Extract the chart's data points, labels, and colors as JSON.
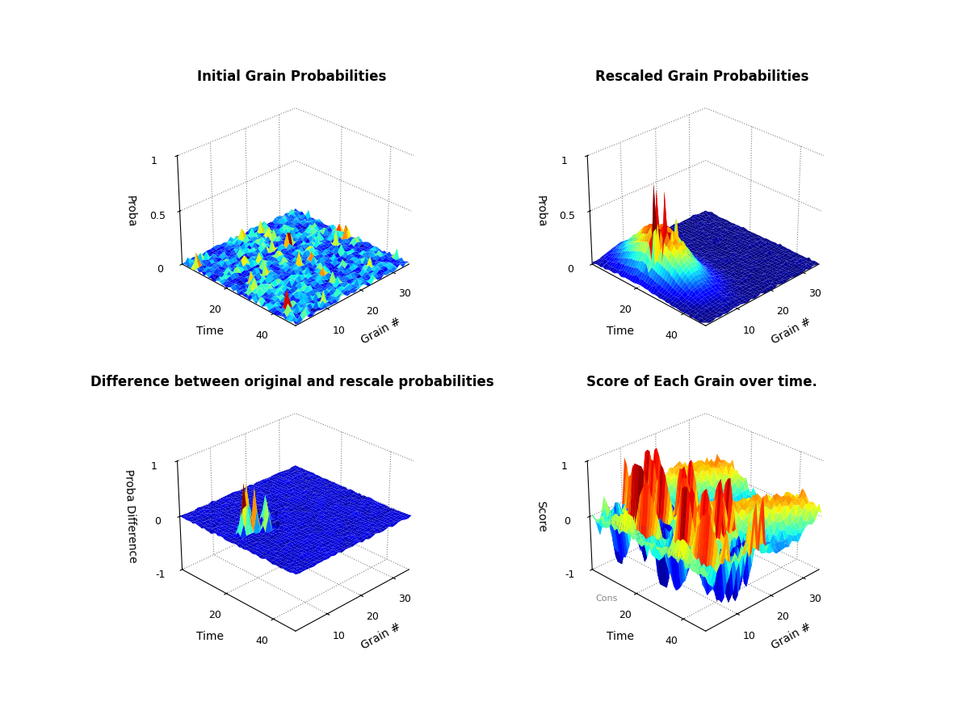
{
  "title1": "Initial Grain Probabilities",
  "title2": "Rescaled Grain Probabilities",
  "title3": "Difference between original and rescale probabilities",
  "title4": "Score of Each Grain over time.",
  "ylabel1": "Proba",
  "ylabel2": "Proba",
  "ylabel3": "Proba Difference",
  "ylabel4": "Score",
  "xlabel_time": "Time",
  "xlabel_grain": "Grain #",
  "n_grains": 35,
  "n_time": 50,
  "bg_color": "#ffffff",
  "title_fontsize": 12,
  "label_fontsize": 10,
  "tick_fontsize": 9,
  "elev": 28,
  "azim": -135
}
